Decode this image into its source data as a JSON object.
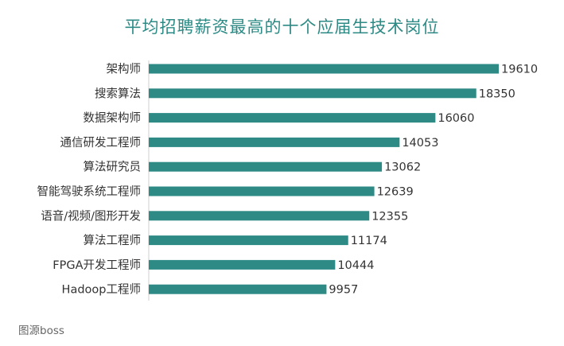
{
  "chart_data": {
    "type": "bar",
    "orientation": "horizontal",
    "title": "平均招聘薪资最高的十个应届生技术岗位",
    "categories": [
      "架构师",
      "搜索算法",
      "数据架构师",
      "通信研发工程师",
      "算法研究员",
      "智能驾驶系统工程师",
      "语音/视频/图形开发",
      "算法工程师",
      "FPGA开发工程师",
      "Hadoop工程师"
    ],
    "values": [
      19610,
      18350,
      16060,
      14053,
      13062,
      12639,
      12355,
      11174,
      10444,
      9957
    ],
    "xlim": [
      0,
      19610
    ],
    "grid": false,
    "color": "#2e8a85"
  },
  "source": "图源boss"
}
